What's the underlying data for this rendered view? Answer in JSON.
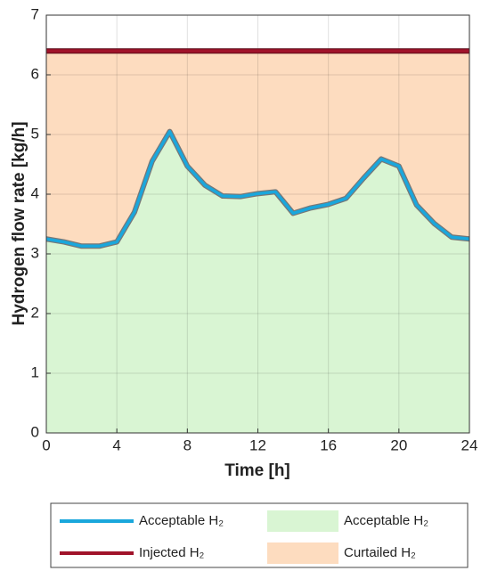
{
  "chart_data": {
    "type": "line",
    "xlabel": "Time [h]",
    "ylabel": "Hydrogen flow rate [kg/h]",
    "x": [
      0,
      1,
      2,
      3,
      4,
      5,
      6,
      7,
      8,
      9,
      10,
      11,
      12,
      13,
      14,
      15,
      16,
      17,
      18,
      19,
      20,
      21,
      22,
      23,
      24
    ],
    "series": [
      {
        "name": "Acceptable H₂",
        "color": "#1aa7dc",
        "values": [
          3.25,
          3.2,
          3.13,
          3.13,
          3.2,
          3.7,
          4.55,
          5.05,
          4.47,
          4.15,
          3.97,
          3.96,
          4.01,
          4.04,
          3.68,
          3.77,
          3.83,
          3.93,
          4.27,
          4.59,
          4.47,
          3.82,
          3.51,
          3.28,
          3.25
        ]
      },
      {
        "name": "Injected H₂",
        "color": "#a0132a",
        "values": [
          6.4,
          6.4,
          6.4,
          6.4,
          6.4,
          6.4,
          6.4,
          6.4,
          6.4,
          6.4,
          6.4,
          6.4,
          6.4,
          6.4,
          6.4,
          6.4,
          6.4,
          6.4,
          6.4,
          6.4,
          6.4,
          6.4,
          6.4,
          6.4,
          6.4
        ]
      }
    ],
    "areas": [
      {
        "name": "Acceptable H₂",
        "color": "#d9f5d3"
      },
      {
        "name": "Curtailed H₂",
        "color": "#fddcbf"
      }
    ],
    "xlim": [
      0,
      24
    ],
    "xticks": [
      0,
      4,
      8,
      12,
      16,
      20,
      24
    ],
    "ylim": [
      0,
      7
    ],
    "yticks": [
      0,
      1,
      2,
      3,
      4,
      5,
      6,
      7
    ],
    "grid": true,
    "legend": "bottom"
  }
}
